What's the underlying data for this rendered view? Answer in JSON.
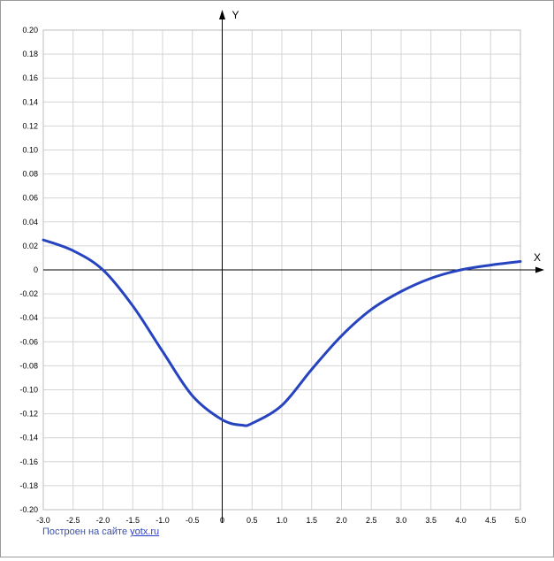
{
  "chart_data": {
    "type": "line",
    "x_axis_label": "X",
    "y_axis_label": "Y",
    "xlim": [
      -3.0,
      5.0
    ],
    "ylim": [
      -0.2,
      0.2
    ],
    "x_ticks": [
      "-3.0",
      "-2.5",
      "-2.0",
      "-1.5",
      "-1.0",
      "-0.5",
      "0",
      "0.5",
      "1.0",
      "1.5",
      "2.0",
      "2.5",
      "3.0",
      "3.5",
      "4.0",
      "4.5",
      "5.0"
    ],
    "y_ticks": [
      "0.20",
      "0.18",
      "0.16",
      "0.14",
      "0.12",
      "0.10",
      "0.08",
      "0.06",
      "0.04",
      "0.02",
      "0",
      "-0.02",
      "-0.04",
      "-0.06",
      "-0.08",
      "-0.10",
      "-0.12",
      "-0.14",
      "-0.16",
      "-0.18",
      "-0.20"
    ],
    "grid": true,
    "line_color": "#2643c0",
    "series": [
      {
        "x": [
          -3.0,
          -2.5,
          -2.0,
          -1.5,
          -1.0,
          -0.5,
          0.0,
          0.33,
          0.5,
          1.0,
          1.5,
          2.0,
          2.5,
          3.0,
          3.5,
          4.0,
          4.5,
          5.0
        ],
        "y": [
          0.025,
          0.016,
          0.0,
          -0.03,
          -0.068,
          -0.105,
          -0.125,
          -0.1295,
          -0.128,
          -0.113,
          -0.083,
          -0.055,
          -0.033,
          -0.018,
          -0.007,
          0.0,
          0.004,
          0.007
        ]
      }
    ]
  },
  "footer": {
    "credit_text": "Построен на сайте ",
    "credit_link": "yotx.ru"
  }
}
